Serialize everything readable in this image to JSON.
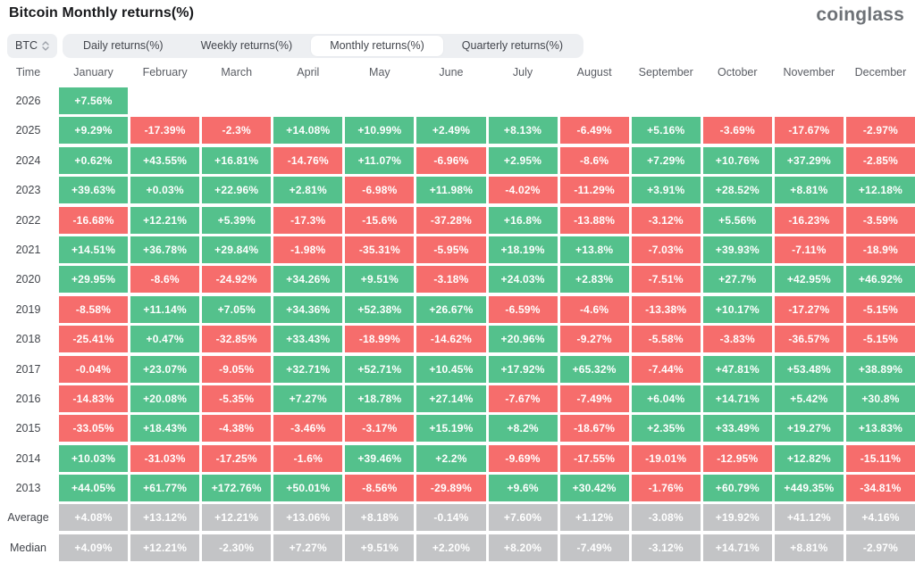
{
  "header": {
    "title": "Bitcoin Monthly returns(%)",
    "logo": "coinglass"
  },
  "controls": {
    "symbol": "BTC",
    "symbol_updown_icon": "updown-chevrons",
    "tabs": [
      {
        "label": "Daily returns(%)",
        "active": false
      },
      {
        "label": "Weekly returns(%)",
        "active": false
      },
      {
        "label": "Monthly returns(%)",
        "active": true
      },
      {
        "label": "Quarterly returns(%)",
        "active": false
      }
    ]
  },
  "colors": {
    "positive": "#54c18c",
    "negative": "#f66d6c",
    "summary": "#c3c4c6"
  },
  "table": {
    "columns": [
      "Time",
      "January",
      "February",
      "March",
      "April",
      "May",
      "June",
      "July",
      "August",
      "September",
      "October",
      "November",
      "December"
    ],
    "rows": [
      {
        "label": "2026",
        "type": "year",
        "values": [
          "+7.56%",
          null,
          null,
          null,
          null,
          null,
          null,
          null,
          null,
          null,
          null,
          null
        ]
      },
      {
        "label": "2025",
        "type": "year",
        "values": [
          "+9.29%",
          "-17.39%",
          "-2.3%",
          "+14.08%",
          "+10.99%",
          "+2.49%",
          "+8.13%",
          "-6.49%",
          "+5.16%",
          "-3.69%",
          "-17.67%",
          "-2.97%"
        ]
      },
      {
        "label": "2024",
        "type": "year",
        "values": [
          "+0.62%",
          "+43.55%",
          "+16.81%",
          "-14.76%",
          "+11.07%",
          "-6.96%",
          "+2.95%",
          "-8.6%",
          "+7.29%",
          "+10.76%",
          "+37.29%",
          "-2.85%"
        ]
      },
      {
        "label": "2023",
        "type": "year",
        "values": [
          "+39.63%",
          "+0.03%",
          "+22.96%",
          "+2.81%",
          "-6.98%",
          "+11.98%",
          "-4.02%",
          "-11.29%",
          "+3.91%",
          "+28.52%",
          "+8.81%",
          "+12.18%"
        ]
      },
      {
        "label": "2022",
        "type": "year",
        "values": [
          "-16.68%",
          "+12.21%",
          "+5.39%",
          "-17.3%",
          "-15.6%",
          "-37.28%",
          "+16.8%",
          "-13.88%",
          "-3.12%",
          "+5.56%",
          "-16.23%",
          "-3.59%"
        ]
      },
      {
        "label": "2021",
        "type": "year",
        "values": [
          "+14.51%",
          "+36.78%",
          "+29.84%",
          "-1.98%",
          "-35.31%",
          "-5.95%",
          "+18.19%",
          "+13.8%",
          "-7.03%",
          "+39.93%",
          "-7.11%",
          "-18.9%"
        ]
      },
      {
        "label": "2020",
        "type": "year",
        "values": [
          "+29.95%",
          "-8.6%",
          "-24.92%",
          "+34.26%",
          "+9.51%",
          "-3.18%",
          "+24.03%",
          "+2.83%",
          "-7.51%",
          "+27.7%",
          "+42.95%",
          "+46.92%"
        ]
      },
      {
        "label": "2019",
        "type": "year",
        "values": [
          "-8.58%",
          "+11.14%",
          "+7.05%",
          "+34.36%",
          "+52.38%",
          "+26.67%",
          "-6.59%",
          "-4.6%",
          "-13.38%",
          "+10.17%",
          "-17.27%",
          "-5.15%"
        ]
      },
      {
        "label": "2018",
        "type": "year",
        "values": [
          "-25.41%",
          "+0.47%",
          "-32.85%",
          "+33.43%",
          "-18.99%",
          "-14.62%",
          "+20.96%",
          "-9.27%",
          "-5.58%",
          "-3.83%",
          "-36.57%",
          "-5.15%"
        ]
      },
      {
        "label": "2017",
        "type": "year",
        "values": [
          "-0.04%",
          "+23.07%",
          "-9.05%",
          "+32.71%",
          "+52.71%",
          "+10.45%",
          "+17.92%",
          "+65.32%",
          "-7.44%",
          "+47.81%",
          "+53.48%",
          "+38.89%"
        ]
      },
      {
        "label": "2016",
        "type": "year",
        "values": [
          "-14.83%",
          "+20.08%",
          "-5.35%",
          "+7.27%",
          "+18.78%",
          "+27.14%",
          "-7.67%",
          "-7.49%",
          "+6.04%",
          "+14.71%",
          "+5.42%",
          "+30.8%"
        ]
      },
      {
        "label": "2015",
        "type": "year",
        "values": [
          "-33.05%",
          "+18.43%",
          "-4.38%",
          "-3.46%",
          "-3.17%",
          "+15.19%",
          "+8.2%",
          "-18.67%",
          "+2.35%",
          "+33.49%",
          "+19.27%",
          "+13.83%"
        ]
      },
      {
        "label": "2014",
        "type": "year",
        "values": [
          "+10.03%",
          "-31.03%",
          "-17.25%",
          "-1.6%",
          "+39.46%",
          "+2.2%",
          "-9.69%",
          "-17.55%",
          "-19.01%",
          "-12.95%",
          "+12.82%",
          "-15.11%"
        ]
      },
      {
        "label": "2013",
        "type": "year",
        "values": [
          "+44.05%",
          "+61.77%",
          "+172.76%",
          "+50.01%",
          "-8.56%",
          "-29.89%",
          "+9.6%",
          "+30.42%",
          "-1.76%",
          "+60.79%",
          "+449.35%",
          "-34.81%"
        ]
      },
      {
        "label": "Average",
        "type": "summary",
        "values": [
          "+4.08%",
          "+13.12%",
          "+12.21%",
          "+13.06%",
          "+8.18%",
          "-0.14%",
          "+7.60%",
          "+1.12%",
          "-3.08%",
          "+19.92%",
          "+41.12%",
          "+4.16%"
        ]
      },
      {
        "label": "Median",
        "type": "summary",
        "values": [
          "+4.09%",
          "+12.21%",
          "-2.30%",
          "+7.27%",
          "+9.51%",
          "+2.20%",
          "+8.20%",
          "-7.49%",
          "-3.12%",
          "+14.71%",
          "+8.81%",
          "-2.97%"
        ]
      }
    ]
  }
}
